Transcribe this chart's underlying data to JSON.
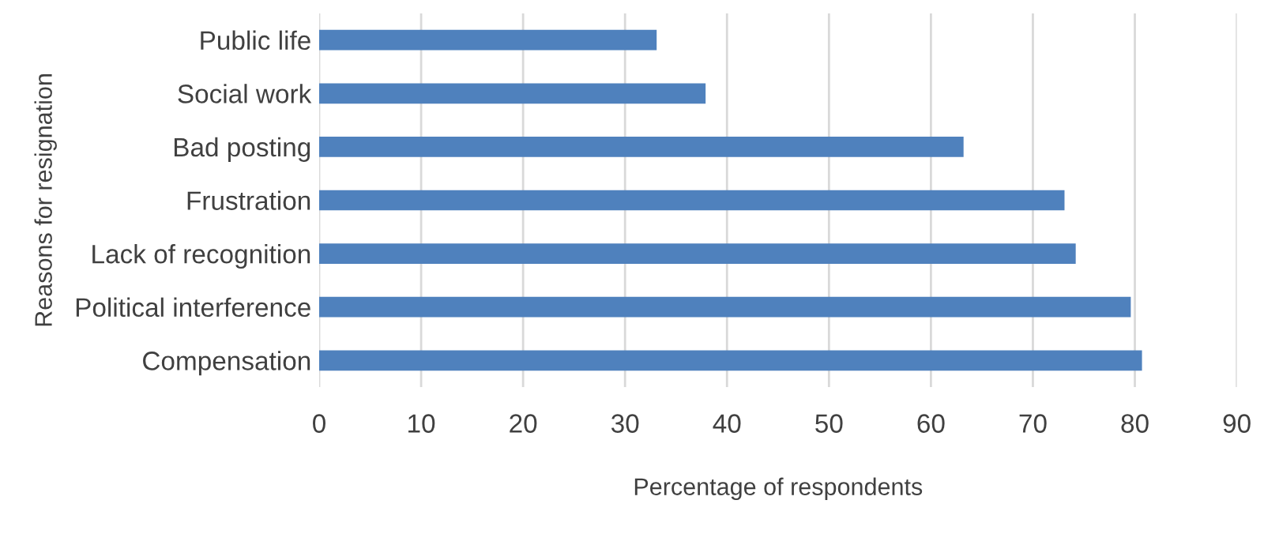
{
  "chart_data": {
    "type": "bar",
    "orientation": "horizontal",
    "categories": [
      "Public life",
      "Social work",
      "Bad posting",
      "Frustration",
      "Lack of recognition",
      "Political interference",
      "Compensation"
    ],
    "values": [
      33.1,
      37.9,
      63.2,
      73.1,
      74.2,
      79.6,
      80.7
    ],
    "color": "#4f81bd",
    "xlabel": "Percentage of respondents",
    "ylabel": "Reasons for resignation",
    "xlim": [
      0,
      90
    ],
    "xticks": [
      0,
      10,
      20,
      30,
      40,
      50,
      60,
      70,
      80,
      90
    ],
    "grid": "x"
  }
}
